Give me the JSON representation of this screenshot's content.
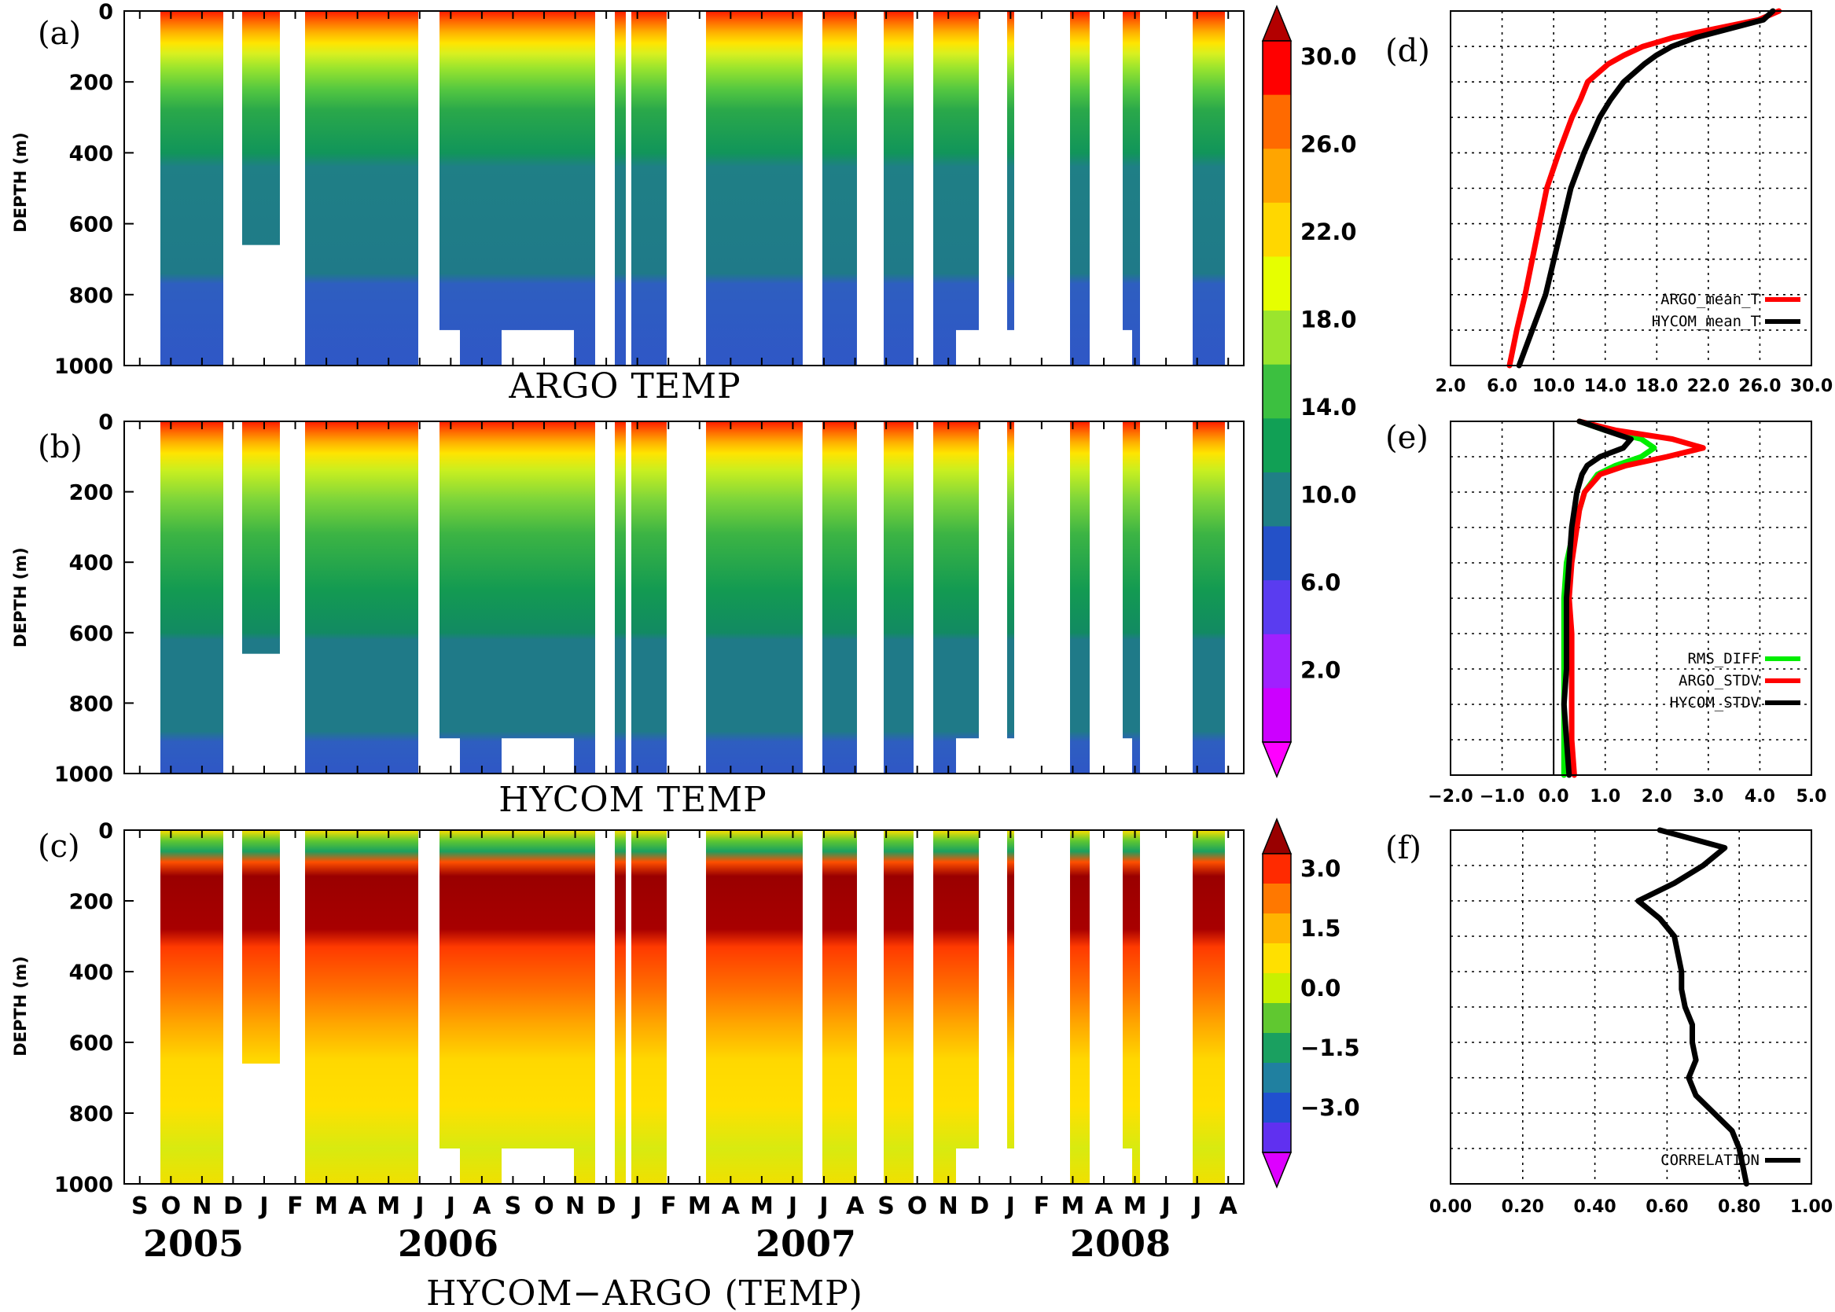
{
  "chart_data": [
    {
      "type": "heatmap",
      "panel_label": "(a)",
      "title": "ARGO TEMP",
      "ylabel": "DEPTH (m)",
      "ylim": [
        1000,
        0
      ],
      "yticks": [
        "0",
        "200",
        "400",
        "600",
        "800",
        "1000"
      ]
    },
    {
      "type": "heatmap",
      "panel_label": "(b)",
      "title": "HYCOM TEMP",
      "ylabel": "DEPTH (m)",
      "ylim": [
        1000,
        0
      ],
      "yticks": [
        "0",
        "200",
        "400",
        "600",
        "800",
        "1000"
      ]
    },
    {
      "type": "heatmap",
      "panel_label": "(c)",
      "title": "HYCOM−ARGO (TEMP)",
      "ylabel": "DEPTH (m)",
      "ylim": [
        1000,
        0
      ],
      "yticks": [
        "0",
        "200",
        "400",
        "600",
        "800",
        "1000"
      ],
      "months": [
        "S",
        "O",
        "N",
        "D",
        "J",
        "F",
        "M",
        "A",
        "M",
        "J",
        "J",
        "A",
        "S",
        "O",
        "N",
        "D",
        "J",
        "F",
        "M",
        "A",
        "M",
        "J",
        "J",
        "A",
        "S",
        "O",
        "N",
        "D",
        "J",
        "F",
        "M",
        "A",
        "M",
        "J",
        "J",
        "A"
      ],
      "years": [
        "2005",
        "2006",
        "2007",
        "2008"
      ]
    },
    {
      "type": "line",
      "panel_label": "(d)",
      "xlim": [
        2.0,
        32.0
      ],
      "xticks": [
        "2.0",
        "6.0",
        "10.0",
        "14.0",
        "18.0",
        "22.0",
        "26.0",
        "30.0"
      ],
      "ylim": [
        1000,
        0
      ],
      "grid": true,
      "legend": "bottom-right",
      "series": [
        {
          "name": "ARGO_mean_T",
          "color": "#ff0000",
          "depth": [
            0,
            25,
            50,
            75,
            100,
            125,
            150,
            200,
            250,
            300,
            400,
            500,
            600,
            700,
            800,
            900,
            1000
          ],
          "values": [
            29.3,
            27.6,
            24.0,
            20.5,
            18.0,
            16.4,
            15.1,
            13.4,
            12.8,
            12.1,
            11.0,
            10.0,
            9.4,
            8.8,
            8.2,
            7.5,
            6.9
          ]
        },
        {
          "name": "HYCOM_mean_T",
          "color": "#000000",
          "depth": [
            0,
            25,
            50,
            75,
            100,
            125,
            150,
            200,
            250,
            300,
            400,
            500,
            600,
            700,
            800,
            900,
            1000
          ],
          "values": [
            28.8,
            28.0,
            25.2,
            22.4,
            20.4,
            19.1,
            18.1,
            16.4,
            15.3,
            14.4,
            13.1,
            12.0,
            11.3,
            10.6,
            9.9,
            8.8,
            7.7
          ]
        }
      ]
    },
    {
      "type": "line",
      "panel_label": "(e)",
      "xlim": [
        -2.0,
        5.0
      ],
      "xticks": [
        "−2.0",
        "−1.0",
        "0.0",
        "1.0",
        "2.0",
        "3.0",
        "4.0",
        "5.0"
      ],
      "ylim": [
        1000,
        0
      ],
      "grid": true,
      "legend": "bottom-right",
      "series": [
        {
          "name": "RMS_DIFF",
          "color": "#00ee00",
          "depth": [
            0,
            25,
            50,
            75,
            100,
            125,
            150,
            200,
            250,
            300,
            400,
            500,
            600,
            700,
            800,
            900,
            1000
          ],
          "values": [
            0.5,
            1.0,
            1.7,
            1.95,
            1.7,
            1.2,
            0.85,
            0.6,
            0.5,
            0.4,
            0.25,
            0.2,
            0.2,
            0.2,
            0.2,
            0.2,
            0.2
          ]
        },
        {
          "name": "ARGO_STDV",
          "color": "#ff0000",
          "depth": [
            0,
            25,
            50,
            75,
            100,
            125,
            150,
            200,
            250,
            300,
            400,
            500,
            600,
            700,
            800,
            900,
            1000
          ],
          "values": [
            0.5,
            1.2,
            2.3,
            2.9,
            2.2,
            1.4,
            0.9,
            0.6,
            0.5,
            0.45,
            0.35,
            0.3,
            0.35,
            0.35,
            0.35,
            0.35,
            0.4
          ]
        },
        {
          "name": "HYCOM_STDV",
          "color": "#000000",
          "depth": [
            0,
            25,
            50,
            75,
            100,
            125,
            150,
            200,
            250,
            300,
            400,
            500,
            600,
            700,
            800,
            900,
            1000
          ],
          "values": [
            0.5,
            1.0,
            1.5,
            1.35,
            0.9,
            0.65,
            0.55,
            0.45,
            0.4,
            0.35,
            0.3,
            0.25,
            0.25,
            0.25,
            0.2,
            0.25,
            0.3
          ]
        }
      ]
    },
    {
      "type": "line",
      "panel_label": "(f)",
      "xlim": [
        0.0,
        1.0
      ],
      "xticks": [
        "0.00",
        "0.20",
        "0.40",
        "0.60",
        "0.80",
        "1.00"
      ],
      "ylim": [
        1000,
        0
      ],
      "grid": true,
      "legend": "bottom-right",
      "series": [
        {
          "name": "CORRELATION",
          "color": "#000000",
          "depth": [
            0,
            50,
            100,
            150,
            200,
            250,
            300,
            350,
            400,
            450,
            500,
            550,
            600,
            650,
            700,
            750,
            800,
            850,
            900,
            950,
            1000
          ],
          "values": [
            0.58,
            0.76,
            0.7,
            0.62,
            0.52,
            0.58,
            0.62,
            0.63,
            0.64,
            0.64,
            0.65,
            0.67,
            0.67,
            0.68,
            0.66,
            0.68,
            0.73,
            0.78,
            0.8,
            0.81,
            0.82
          ]
        }
      ]
    }
  ],
  "colorbars": [
    {
      "labels": [
        "30.0",
        "26.0",
        "22.0",
        "18.0",
        "14.0",
        "10.0",
        "6.0",
        "2.0"
      ],
      "colors": [
        "#ff0000",
        "#ff6a00",
        "#ffa500",
        "#ffd700",
        "#e6ff00",
        "#9be52d",
        "#3cc040",
        "#11a055",
        "#1f7f86",
        "#2451c8",
        "#5a3cf0",
        "#a020ff",
        "#cc00ff"
      ],
      "top_color": "#b30000",
      "bottom_color": "#ff00ff"
    },
    {
      "labels": [
        "3.0",
        "1.5",
        "0.0",
        "−1.5",
        "−3.0"
      ],
      "colors": [
        "#ff2a00",
        "#ff7800",
        "#ffb400",
        "#ffe000",
        "#c8f000",
        "#60c830",
        "#1aa060",
        "#2080a0",
        "#2050d0",
        "#6030f0"
      ],
      "top_color": "#990000",
      "bottom_color": "#dd00ff"
    }
  ]
}
